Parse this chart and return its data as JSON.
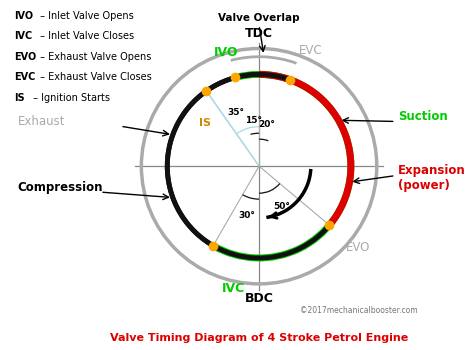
{
  "title": "Valve Timing Diagram of 4 Stroke Petrol Engine",
  "title_color": "#dd0000",
  "bg_color": "#ffffff",
  "R_gray": 1.0,
  "R_main": 0.78,
  "R_inner_arcs": 0.68,
  "TDC": 90.0,
  "BDC": 270.0,
  "IVO": 105.0,
  "EVC": 70.0,
  "IS": 125.0,
  "IVC": 240.0,
  "EVO": 320.0,
  "point_color": "#FFA500",
  "suction_color": "#00cc00",
  "expansion_color": "#dd0000",
  "black_color": "#111111",
  "gray_color": "#aaaaaa",
  "crosshair_color": "#888888",
  "legend_items": [
    [
      "IVO",
      " – Inlet Valve Opens"
    ],
    [
      "IVC",
      " – Inlet Valve Closes"
    ],
    [
      "EVO",
      " – Exhaust Valve Opens"
    ],
    [
      "EVC",
      " – Exhaust Valve Closes"
    ],
    [
      "IS",
      " – Ignition Starts"
    ]
  ],
  "copyright": "©2017mechanicalbooster.com"
}
